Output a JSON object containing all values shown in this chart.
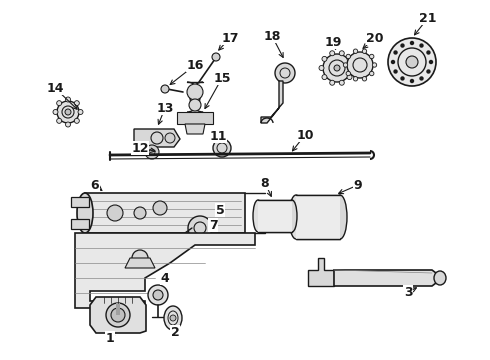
{
  "bg": "#ffffff",
  "lc": "#1a1a1a",
  "fig_w": 4.9,
  "fig_h": 3.6,
  "dpi": 100,
  "label_fs": 9,
  "label_fw": "bold"
}
